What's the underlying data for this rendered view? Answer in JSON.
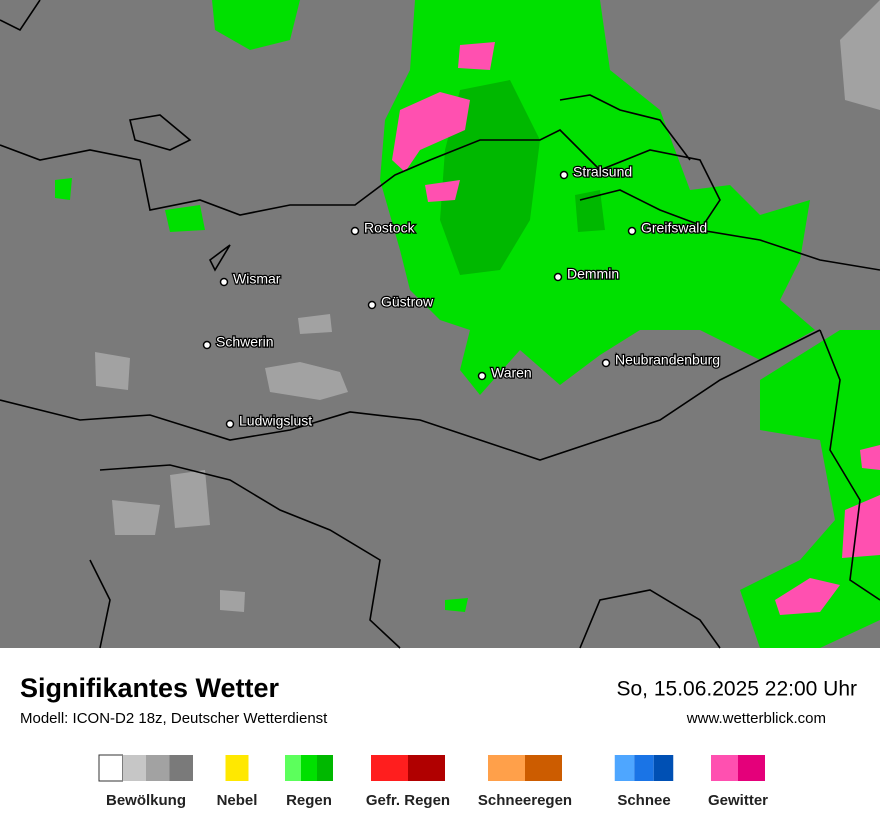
{
  "header": {
    "title": "Signifikantes Wetter",
    "model": "Modell: ICON-D2 18z, Deutscher Wetterdienst",
    "datetime": "So, 15.06.2025 22:00 Uhr",
    "website": "www.wetterblick.com"
  },
  "map": {
    "cities": [
      {
        "label": "Stralsund"
      },
      {
        "label": "Rostock"
      },
      {
        "label": "Greifswald"
      },
      {
        "label": "Wismar"
      },
      {
        "label": "Demmin"
      },
      {
        "label": "Güstrow"
      },
      {
        "label": "Schwerin"
      },
      {
        "label": "Neubrandenburg"
      },
      {
        "label": "Waren"
      },
      {
        "label": "Ludwigslust"
      }
    ]
  },
  "legend": {
    "items": [
      {
        "label": "Bewölkung",
        "colors": [
          "#ffffff",
          "#c6c6c6",
          "#a2a2a2",
          "#7a7a7a"
        ]
      },
      {
        "label": "Nebel",
        "colors": [
          "#ffe800"
        ]
      },
      {
        "label": "Regen",
        "colors": [
          "#5cff5c",
          "#00e000",
          "#00b800"
        ]
      },
      {
        "label": "Gefr. Regen",
        "colors": [
          "#ff1e1e",
          "#b00000"
        ]
      },
      {
        "label": "Schneeregen",
        "colors": [
          "#ffa04a",
          "#cc5c00"
        ]
      },
      {
        "label": "Schnee",
        "colors": [
          "#4ea6ff",
          "#1a74e6",
          "#0050b4"
        ]
      },
      {
        "label": "Gewitter",
        "colors": [
          "#ff50b0",
          "#e4007a"
        ]
      }
    ]
  }
}
